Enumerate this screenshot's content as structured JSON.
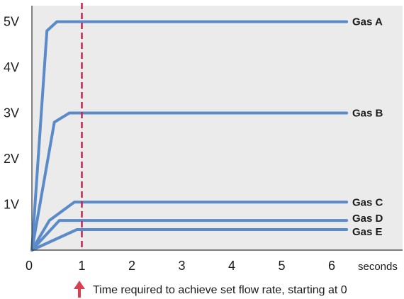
{
  "chart_data": {
    "type": "line",
    "x_unit_label": "seconds",
    "xlim": [
      0,
      7
    ],
    "ylim": [
      0,
      5.35
    ],
    "x_ticks": [
      0,
      1,
      2,
      3,
      4,
      5,
      6
    ],
    "y_ticks": [
      {
        "value": 1,
        "label": "1V"
      },
      {
        "value": 2,
        "label": "2V"
      },
      {
        "value": 3,
        "label": "3V"
      },
      {
        "value": 4,
        "label": "4V"
      },
      {
        "value": 5,
        "label": "5V"
      }
    ],
    "series": [
      {
        "name": "Gas A",
        "points": [
          [
            0,
            0
          ],
          [
            0.3,
            4.8
          ],
          [
            0.5,
            5.0
          ],
          [
            6.3,
            5.0
          ]
        ]
      },
      {
        "name": "Gas B",
        "points": [
          [
            0,
            0
          ],
          [
            0.45,
            2.8
          ],
          [
            0.75,
            3.0
          ],
          [
            6.3,
            3.0
          ]
        ]
      },
      {
        "name": "Gas C",
        "points": [
          [
            0,
            0
          ],
          [
            0.35,
            0.65
          ],
          [
            0.85,
            1.05
          ],
          [
            6.3,
            1.05
          ]
        ]
      },
      {
        "name": "Gas D",
        "points": [
          [
            0,
            0
          ],
          [
            0.55,
            0.65
          ],
          [
            6.3,
            0.65
          ]
        ]
      },
      {
        "name": "Gas E",
        "points": [
          [
            0,
            0
          ],
          [
            0.9,
            0.45
          ],
          [
            6.3,
            0.45
          ]
        ]
      }
    ],
    "marker_line": {
      "x": 1
    },
    "annotation": "Time required to achieve set flow rate, starting at 0",
    "colors": {
      "series": "#5b8ac9",
      "marker": "#c0264f",
      "background": "#ebebeb",
      "arrow": "#d9404f"
    }
  }
}
